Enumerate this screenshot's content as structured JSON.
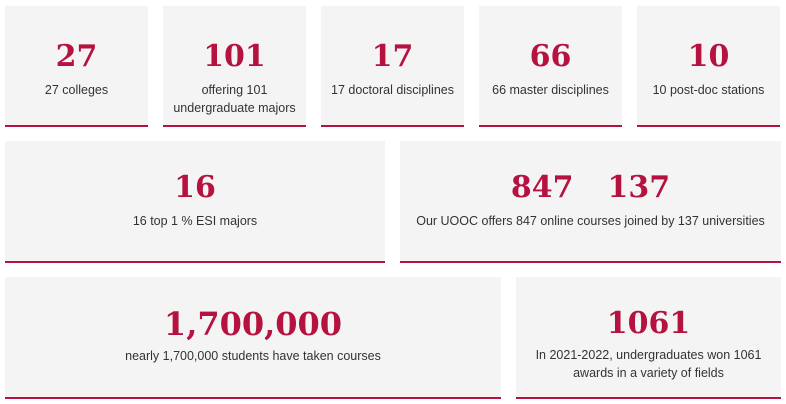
{
  "colors": {
    "accent": "#b5123f",
    "card_bg": "#f4f4f4",
    "text": "#333333"
  },
  "stats": {
    "colleges": {
      "value": "27",
      "label": "27 colleges"
    },
    "undergrad": {
      "value": "101",
      "label_line1": "offering 101",
      "label_line2": "undergraduate majors"
    },
    "doctoral": {
      "value": "17",
      "label": "17 doctoral disciplines"
    },
    "master": {
      "value": "66",
      "label": "66 master disciplines"
    },
    "postdoc": {
      "value": "10",
      "label": "10 post-doc stations"
    },
    "esi": {
      "value": "16",
      "label": "16 top 1 % ESI majors"
    },
    "uooc": {
      "value1": "847",
      "value2": "137",
      "label": "Our UOOC offers 847 online courses joined by 137 universities"
    },
    "students": {
      "value": "1,700,000",
      "label": "nearly 1,700,000 students have taken courses"
    },
    "awards": {
      "value": "1061",
      "label_line1": "In 2021-2022, undergraduates won 1061",
      "label_line2": "awards in a variety of fields"
    }
  }
}
